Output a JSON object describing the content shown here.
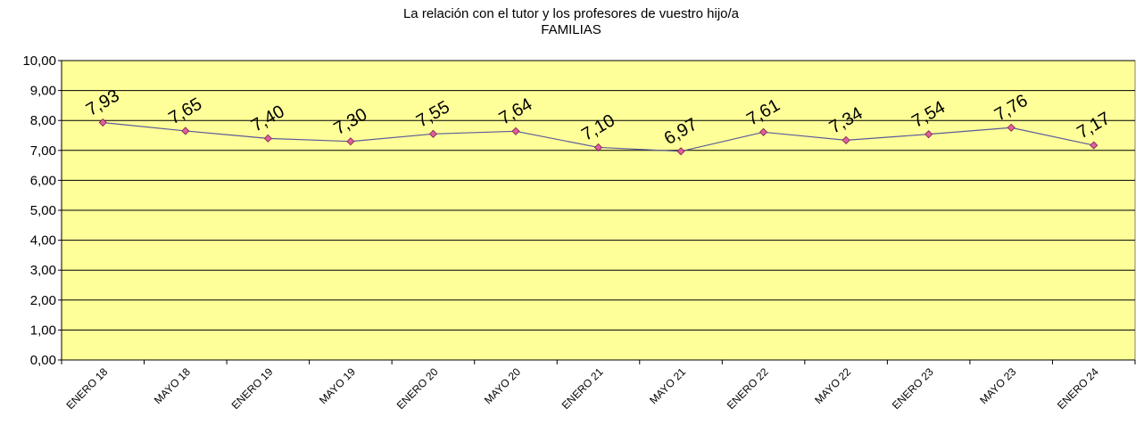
{
  "chart_data": {
    "type": "line",
    "title": "La relación con el tutor y los profesores de vuestro hijo/a",
    "subtitle": "FAMILIAS",
    "categories": [
      "ENERO 18",
      "MAYO 18",
      "ENERO 19",
      "MAYO 19",
      "ENERO 20",
      "MAYO 20",
      "ENERO 21",
      "MAYO 21",
      "ENERO 22",
      "MAYO 22",
      "ENERO 23",
      "MAYO 23",
      "ENERO 24"
    ],
    "values": [
      7.93,
      7.65,
      7.4,
      7.3,
      7.55,
      7.64,
      7.1,
      6.97,
      7.61,
      7.34,
      7.54,
      7.76,
      7.17
    ],
    "value_labels": [
      "7,93",
      "7,65",
      "7,40",
      "7,30",
      "7,55",
      "7,64",
      "7,10",
      "6,97",
      "7,61",
      "7,34",
      "7,54",
      "7,76",
      "7,17"
    ],
    "color": "#5a5a9a",
    "marker_color": "#e0609a",
    "background": "#ffff99",
    "ylim": [
      0,
      10
    ],
    "yticks": [
      {
        "value": 0,
        "label": "0,00"
      },
      {
        "value": 1,
        "label": "1,00"
      },
      {
        "value": 2,
        "label": "2,00"
      },
      {
        "value": 3,
        "label": "3,00"
      },
      {
        "value": 4,
        "label": "4,00"
      },
      {
        "value": 5,
        "label": "5,00"
      },
      {
        "value": 6,
        "label": "6,00"
      },
      {
        "value": 7,
        "label": "7,00"
      },
      {
        "value": 8,
        "label": "8,00"
      },
      {
        "value": 9,
        "label": "9,00"
      },
      {
        "value": 10,
        "label": "10,00"
      }
    ],
    "grid": true
  }
}
